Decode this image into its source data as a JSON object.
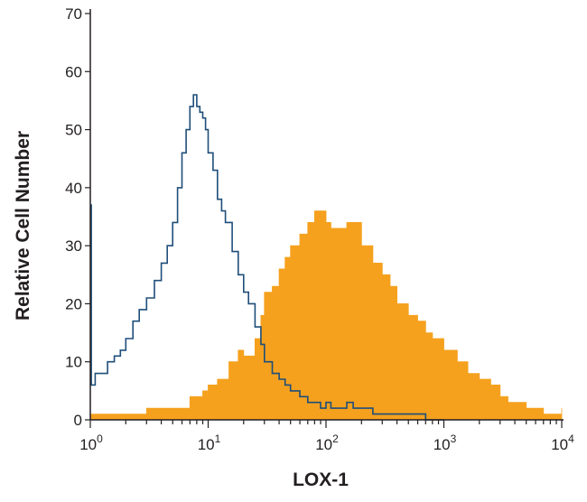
{
  "chart_data": {
    "type": "area",
    "title": "",
    "xlabel": "LOX-1",
    "ylabel": "Relative Cell Number",
    "xscale": "log",
    "xlim": [
      1,
      10000
    ],
    "ylim": [
      0,
      70
    ],
    "grid": false,
    "legend": "none",
    "x_ticks": [
      {
        "value": 1,
        "base": "10",
        "exp": "0"
      },
      {
        "value": 10,
        "base": "10",
        "exp": "1"
      },
      {
        "value": 100,
        "base": "10",
        "exp": "2"
      },
      {
        "value": 1000,
        "base": "10",
        "exp": "3"
      },
      {
        "value": 10000,
        "base": "10",
        "exp": "4"
      }
    ],
    "y_ticks": [
      {
        "value": 0,
        "label": "0"
      },
      {
        "value": 10,
        "label": "10"
      },
      {
        "value": 20,
        "label": "20"
      },
      {
        "value": 30,
        "label": "30"
      },
      {
        "value": 40,
        "label": "40"
      },
      {
        "value": 50,
        "label": "50"
      },
      {
        "value": 60,
        "label": "60"
      },
      {
        "value": 70,
        "label": "70"
      }
    ],
    "series": [
      {
        "style": "filled",
        "color": "#f5a11e",
        "x": [
          1,
          1.5,
          2,
          3,
          4,
          5,
          6,
          7,
          8,
          9,
          10,
          12,
          15,
          18,
          20,
          25,
          28,
          30,
          35,
          40,
          45,
          50,
          60,
          70,
          80,
          90,
          100,
          110,
          130,
          150,
          170,
          200,
          250,
          300,
          350,
          400,
          500,
          600,
          700,
          800,
          1000,
          1300,
          1600,
          2000,
          2500,
          3000,
          3500,
          4000,
          5000,
          6000,
          7000,
          8000,
          10000
        ],
        "y": [
          1,
          1,
          1,
          2,
          2,
          2,
          2,
          4,
          4,
          5,
          6,
          7,
          10,
          12,
          11,
          14,
          18,
          22,
          23,
          26,
          28,
          30,
          32,
          34,
          36,
          36,
          34,
          33,
          33,
          34,
          34,
          30,
          27,
          25,
          23,
          20,
          18,
          17,
          15,
          14,
          12,
          10,
          8,
          7,
          6,
          4,
          3,
          3,
          2,
          2,
          1,
          1,
          2
        ]
      },
      {
        "style": "outline",
        "color": "#1f4e79",
        "x": [
          1,
          1.02,
          1.1,
          1.2,
          1.4,
          1.6,
          1.8,
          2,
          2.3,
          2.6,
          3,
          3.5,
          4,
          4.5,
          5,
          5.5,
          6,
          6.5,
          7,
          7.5,
          8,
          8.5,
          9,
          9.5,
          10,
          11,
          12,
          13,
          14,
          16,
          18,
          20,
          22,
          25,
          28,
          30,
          35,
          40,
          45,
          50,
          60,
          70,
          80,
          90,
          100,
          110,
          130,
          150,
          170,
          200,
          250,
          300,
          400,
          500,
          600,
          700,
          800,
          1000
        ],
        "y": [
          37,
          6,
          8,
          8,
          10,
          11,
          12,
          14,
          17,
          19,
          21,
          24,
          27,
          30,
          34,
          40,
          46,
          50,
          54,
          56,
          54,
          53,
          52,
          50,
          46,
          43,
          38,
          36,
          34,
          29,
          25,
          22,
          20,
          16,
          13,
          10,
          8,
          7,
          6,
          5,
          4,
          3,
          3,
          2,
          3,
          2,
          2,
          3,
          2,
          2,
          1,
          1,
          1,
          1,
          1,
          0,
          0,
          0
        ]
      }
    ]
  }
}
